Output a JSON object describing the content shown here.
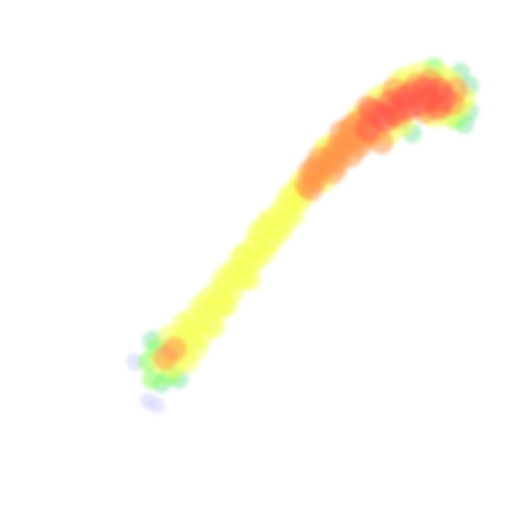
{
  "chart_data": {
    "type": "heatmap",
    "style": "point-density",
    "title": "",
    "xlabel": "",
    "ylabel": "",
    "axes_visible": false,
    "grid": false,
    "legend": "none",
    "background": "#ffffff",
    "color_scale": [
      "#d2d2ff",
      "#8ce6aa",
      "#8cff5a",
      "#f5ff5a",
      "#ff9646",
      "#ff5a46"
    ],
    "xlim": [
      0,
      1
    ],
    "ylim": [
      0,
      1
    ],
    "x": [
      0.17,
      0.2,
      0.2,
      0.21,
      0.21,
      0.22,
      0.22,
      0.23,
      0.23,
      0.24,
      0.25,
      0.25,
      0.26,
      0.26,
      0.27,
      0.27,
      0.28,
      0.28,
      0.29,
      0.29,
      0.3,
      0.3,
      0.31,
      0.31,
      0.32,
      0.32,
      0.33,
      0.34,
      0.34,
      0.35,
      0.35,
      0.36,
      0.36,
      0.37,
      0.37,
      0.38,
      0.38,
      0.39,
      0.39,
      0.4,
      0.41,
      0.41,
      0.42,
      0.42,
      0.43,
      0.43,
      0.44,
      0.44,
      0.45,
      0.45,
      0.46,
      0.46,
      0.47,
      0.47,
      0.48,
      0.48,
      0.49,
      0.5,
      0.5,
      0.51,
      0.51,
      0.52,
      0.52,
      0.53,
      0.53,
      0.54,
      0.54,
      0.55,
      0.55,
      0.56,
      0.57,
      0.57,
      0.58,
      0.58,
      0.59,
      0.59,
      0.6,
      0.6,
      0.61,
      0.61,
      0.62,
      0.62,
      0.63,
      0.63,
      0.64,
      0.64,
      0.65,
      0.66,
      0.66,
      0.67,
      0.67,
      0.68,
      0.68,
      0.69,
      0.69,
      0.7,
      0.7,
      0.71,
      0.71,
      0.72,
      0.73,
      0.73,
      0.74,
      0.74,
      0.75,
      0.75,
      0.76,
      0.76,
      0.77,
      0.77,
      0.78,
      0.78,
      0.79,
      0.79,
      0.8,
      0.8,
      0.81,
      0.82,
      0.82,
      0.83,
      0.83,
      0.84,
      0.84,
      0.85,
      0.85,
      0.86,
      0.86,
      0.87,
      0.87,
      0.88,
      0.89,
      0.89,
      0.9,
      0.9,
      0.91,
      0.91,
      0.92,
      0.92,
      0.93,
      0.93
    ],
    "y": [
      0.25,
      0.16,
      0.25,
      0.3,
      0.21,
      0.15,
      0.28,
      0.25,
      0.2,
      0.26,
      0.22,
      0.31,
      0.24,
      0.28,
      0.3,
      0.21,
      0.34,
      0.27,
      0.32,
      0.25,
      0.3,
      0.35,
      0.33,
      0.28,
      0.38,
      0.31,
      0.37,
      0.34,
      0.4,
      0.38,
      0.33,
      0.41,
      0.37,
      0.44,
      0.39,
      0.43,
      0.38,
      0.46,
      0.41,
      0.46,
      0.44,
      0.49,
      0.45,
      0.5,
      0.48,
      0.44,
      0.52,
      0.48,
      0.51,
      0.55,
      0.5,
      0.55,
      0.52,
      0.57,
      0.53,
      0.58,
      0.56,
      0.59,
      0.55,
      0.61,
      0.57,
      0.63,
      0.6,
      0.64,
      0.59,
      0.65,
      0.62,
      0.67,
      0.63,
      0.66,
      0.69,
      0.65,
      0.7,
      0.67,
      0.72,
      0.69,
      0.67,
      0.74,
      0.71,
      0.75,
      0.73,
      0.69,
      0.75,
      0.71,
      0.78,
      0.74,
      0.76,
      0.79,
      0.73,
      0.8,
      0.77,
      0.82,
      0.75,
      0.81,
      0.77,
      0.84,
      0.79,
      0.83,
      0.78,
      0.86,
      0.82,
      0.76,
      0.87,
      0.81,
      0.85,
      0.78,
      0.88,
      0.83,
      0.9,
      0.82,
      0.86,
      0.8,
      0.91,
      0.84,
      0.87,
      0.78,
      0.89,
      0.85,
      0.92,
      0.83,
      0.88,
      0.9,
      0.86,
      0.93,
      0.82,
      0.88,
      0.84,
      0.91,
      0.86,
      0.82,
      0.9,
      0.85,
      0.88,
      0.81,
      0.92,
      0.84,
      0.86,
      0.8,
      0.89,
      0.83
    ]
  }
}
